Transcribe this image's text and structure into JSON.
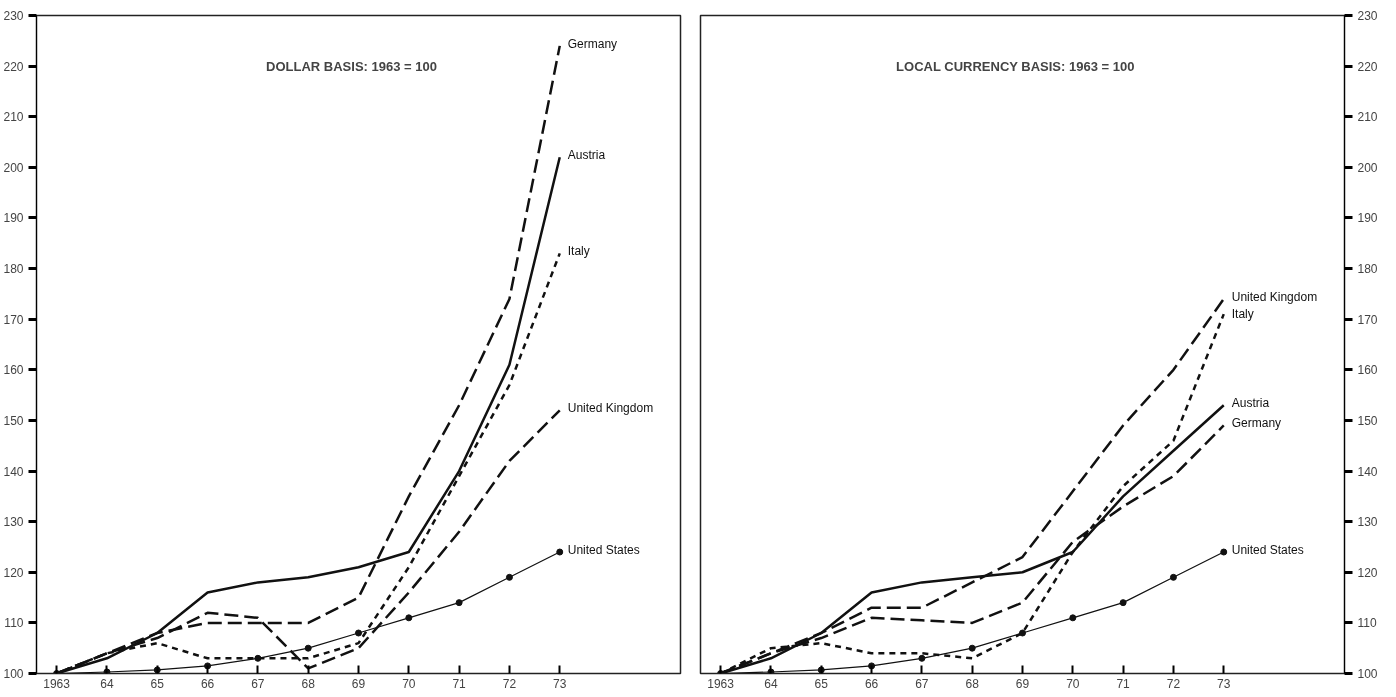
{
  "chart_data": [
    {
      "type": "line",
      "title": "DOLLAR BASIS: 1963 = 100",
      "x": [
        1963,
        1964,
        1965,
        1966,
        1967,
        1968,
        1969,
        1970,
        1971,
        1972,
        1973
      ],
      "xlim": [
        1962.6,
        1975.4
      ],
      "ylim": [
        100,
        230
      ],
      "yticks": [
        100,
        110,
        120,
        130,
        140,
        150,
        160,
        170,
        180,
        190,
        200,
        210,
        220,
        230
      ],
      "xticks": [
        1963,
        {
          "value": 1964,
          "label": "64"
        },
        {
          "value": 1965,
          "label": "65"
        },
        {
          "value": 1966,
          "label": "66"
        },
        {
          "value": 1967,
          "label": "67"
        },
        {
          "value": 1968,
          "label": "68"
        },
        {
          "value": 1969,
          "label": "69"
        },
        {
          "value": 1970,
          "label": "70"
        },
        {
          "value": 1971,
          "label": "71"
        },
        {
          "value": 1972,
          "label": "72"
        },
        {
          "value": 1973,
          "label": "73"
        }
      ],
      "series": [
        {
          "name": "Germany",
          "color": "#111111",
          "line_style": "dashed",
          "values": [
            100,
            104,
            108,
            110,
            110,
            110,
            115,
            135,
            153,
            174,
            224
          ]
        },
        {
          "name": "Austria",
          "color": "#111111",
          "line_style": "solid",
          "values": [
            100,
            103,
            108,
            116,
            118,
            119,
            121,
            124,
            140,
            161,
            202
          ]
        },
        {
          "name": "Italy",
          "color": "#111111",
          "line_style": "dotted",
          "values": [
            100,
            104,
            106,
            103,
            103,
            103,
            106,
            121,
            139,
            157,
            183
          ]
        },
        {
          "name": "United Kingdom",
          "color": "#111111",
          "line_style": "dashed",
          "values": [
            100,
            104,
            107,
            112,
            111,
            101,
            105,
            116,
            128,
            142,
            152
          ]
        },
        {
          "name": "United States",
          "color": "#111111",
          "line_style": "solid",
          "marker": "circle",
          "values": [
            100,
            100.3,
            100.7,
            101.5,
            103,
            105,
            108,
            111,
            114,
            119,
            124
          ]
        }
      ]
    },
    {
      "type": "line",
      "title": "LOCAL CURRENCY BASIS: 1963 = 100",
      "x": [
        1963,
        1964,
        1965,
        1966,
        1967,
        1968,
        1969,
        1970,
        1971,
        1972,
        1973
      ],
      "xlim": [
        1962.6,
        1975.4
      ],
      "ylim": [
        100,
        230
      ],
      "yticks": [
        100,
        110,
        120,
        130,
        140,
        150,
        160,
        170,
        180,
        190,
        200,
        210,
        220,
        230
      ],
      "xticks": [
        1963,
        {
          "value": 1964,
          "label": "64"
        },
        {
          "value": 1965,
          "label": "65"
        },
        {
          "value": 1966,
          "label": "66"
        },
        {
          "value": 1967,
          "label": "67"
        },
        {
          "value": 1968,
          "label": "68"
        },
        {
          "value": 1969,
          "label": "69"
        },
        {
          "value": 1970,
          "label": "70"
        },
        {
          "value": 1971,
          "label": "71"
        },
        {
          "value": 1972,
          "label": "72"
        },
        {
          "value": 1973,
          "label": "73"
        }
      ],
      "series": [
        {
          "name": "United Kingdom",
          "color": "#111111",
          "line_style": "dashed",
          "values": [
            100,
            104,
            108,
            113,
            113,
            118,
            123,
            136,
            149,
            160,
            174
          ]
        },
        {
          "name": "Italy",
          "color": "#111111",
          "line_style": "dotted",
          "values": [
            100,
            105,
            106,
            104,
            104,
            103,
            108,
            124,
            137,
            146,
            171
          ]
        },
        {
          "name": "Austria",
          "color": "#111111",
          "line_style": "solid",
          "values": [
            100,
            103,
            108,
            116,
            118,
            119,
            120,
            124,
            135,
            144,
            153
          ]
        },
        {
          "name": "Germany",
          "color": "#111111",
          "line_style": "dashed",
          "values": [
            100,
            104,
            107,
            111,
            110.5,
            110,
            114,
            126,
            133,
            139,
            149
          ]
        },
        {
          "name": "United States",
          "color": "#111111",
          "line_style": "solid",
          "marker": "circle",
          "values": [
            100,
            100.3,
            100.7,
            101.5,
            103,
            105,
            108,
            111,
            114,
            119,
            124
          ]
        }
      ]
    }
  ]
}
